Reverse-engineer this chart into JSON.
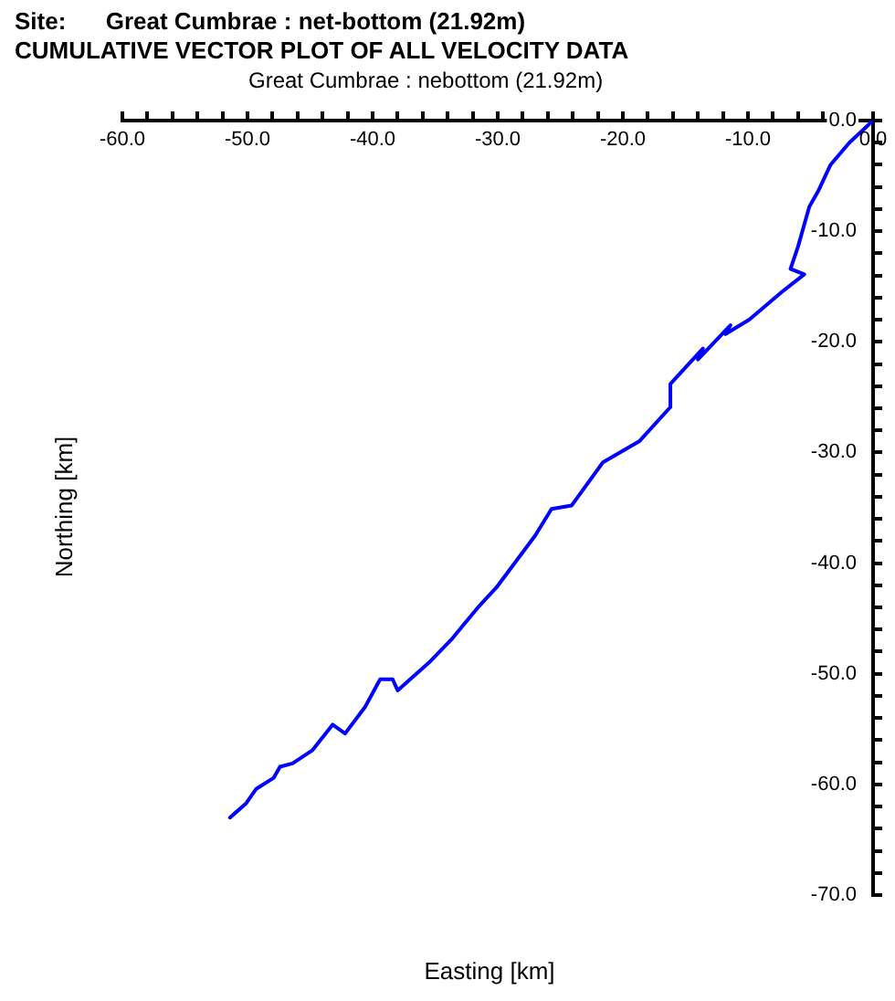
{
  "chart_data": {
    "type": "line",
    "title": "Site:      Great Cumbrae : net-bottom (21.92m)",
    "subtitle": "CUMULATIVE VECTOR PLOT OF ALL VELOCITY DATA",
    "xlabel": "Easting [km]",
    "ylabel": "Northing [km]",
    "annotations": [
      "Great Cumbrae : nebottom (21.92m)"
    ],
    "series": [
      {
        "color": "#0000ff",
        "x": [
          0,
          -1.9,
          -3.4,
          -4.4,
          -5.1,
          -6.0,
          -6.6,
          -5.5,
          -7.3,
          -9.9,
          -11.8,
          -11.4,
          -14.0,
          -13.6,
          -16.2,
          -16.2,
          -18.7,
          -21.6,
          -24.1,
          -25.7,
          -27.0,
          -30.1,
          -31.5,
          -33.7,
          -35.5,
          -38.0,
          -38.4,
          -39.4,
          -40.6,
          -42.2,
          -43.2,
          -44.8,
          -46.4,
          -47.4,
          -47.9,
          -49.3,
          -50.1,
          -51.4
        ],
        "values": [
          0,
          -2.0,
          -4.0,
          -6.4,
          -7.8,
          -11.4,
          -13.4,
          -13.9,
          -15.5,
          -18.0,
          -19.3,
          -18.5,
          -21.6,
          -20.6,
          -23.8,
          -25.9,
          -29.0,
          -30.9,
          -34.8,
          -35.1,
          -37.5,
          -42.2,
          -43.9,
          -46.9,
          -49.0,
          -51.5,
          -50.5,
          -50.5,
          -53.0,
          -55.4,
          -54.6,
          -56.9,
          -58.1,
          -58.4,
          -59.4,
          -60.4,
          -61.7,
          -63.0
        ]
      }
    ],
    "xlim": [
      -60,
      0
    ],
    "xticks": [
      {
        "value": -60,
        "label": "-60.0"
      },
      {
        "value": -58,
        "label": null
      },
      {
        "value": -56,
        "label": null
      },
      {
        "value": -54,
        "label": null
      },
      {
        "value": -52,
        "label": null
      },
      {
        "value": -50,
        "label": "-50.0"
      },
      {
        "value": -48,
        "label": null
      },
      {
        "value": -46,
        "label": null
      },
      {
        "value": -44,
        "label": null
      },
      {
        "value": -42,
        "label": null
      },
      {
        "value": -40,
        "label": "-40.0"
      },
      {
        "value": -38,
        "label": null
      },
      {
        "value": -36,
        "label": null
      },
      {
        "value": -34,
        "label": null
      },
      {
        "value": -32,
        "label": null
      },
      {
        "value": -30,
        "label": "-30.0"
      },
      {
        "value": -28,
        "label": null
      },
      {
        "value": -26,
        "label": null
      },
      {
        "value": -24,
        "label": null
      },
      {
        "value": -22,
        "label": null
      },
      {
        "value": -20,
        "label": "-20.0"
      },
      {
        "value": -18,
        "label": null
      },
      {
        "value": -16,
        "label": null
      },
      {
        "value": -14,
        "label": null
      },
      {
        "value": -12,
        "label": null
      },
      {
        "value": -10,
        "label": "-10.0"
      },
      {
        "value": -8,
        "label": null
      },
      {
        "value": -6,
        "label": null
      },
      {
        "value": -4,
        "label": null
      },
      {
        "value": -2,
        "label": null
      },
      {
        "value": 0,
        "label": "0.0"
      }
    ],
    "ylim": [
      -70,
      0
    ],
    "yticks": [
      {
        "value": -70,
        "label": "-70.0"
      },
      {
        "value": -68,
        "label": null
      },
      {
        "value": -66,
        "label": null
      },
      {
        "value": -64,
        "label": null
      },
      {
        "value": -62,
        "label": null
      },
      {
        "value": -60,
        "label": "-60.0"
      },
      {
        "value": -58,
        "label": null
      },
      {
        "value": -56,
        "label": null
      },
      {
        "value": -54,
        "label": null
      },
      {
        "value": -52,
        "label": null
      },
      {
        "value": -50,
        "label": "-50.0"
      },
      {
        "value": -48,
        "label": null
      },
      {
        "value": -46,
        "label": null
      },
      {
        "value": -44,
        "label": null
      },
      {
        "value": -42,
        "label": null
      },
      {
        "value": -40,
        "label": "-40.0"
      },
      {
        "value": -38,
        "label": null
      },
      {
        "value": -36,
        "label": null
      },
      {
        "value": -34,
        "label": null
      },
      {
        "value": -32,
        "label": null
      },
      {
        "value": -30,
        "label": "-30.0"
      },
      {
        "value": -28,
        "label": null
      },
      {
        "value": -26,
        "label": null
      },
      {
        "value": -24,
        "label": null
      },
      {
        "value": -22,
        "label": null
      },
      {
        "value": -20,
        "label": "-20.0"
      },
      {
        "value": -18,
        "label": null
      },
      {
        "value": -16,
        "label": null
      },
      {
        "value": -14,
        "label": null
      },
      {
        "value": -12,
        "label": null
      },
      {
        "value": -10,
        "label": "-10.0"
      },
      {
        "value": -8,
        "label": null
      },
      {
        "value": -6,
        "label": null
      },
      {
        "value": -4,
        "label": null
      },
      {
        "value": -2,
        "label": null
      },
      {
        "value": 0,
        "label": "0.0"
      }
    ],
    "grid": false,
    "legend": false,
    "marker": "none",
    "line_style": "solid"
  }
}
